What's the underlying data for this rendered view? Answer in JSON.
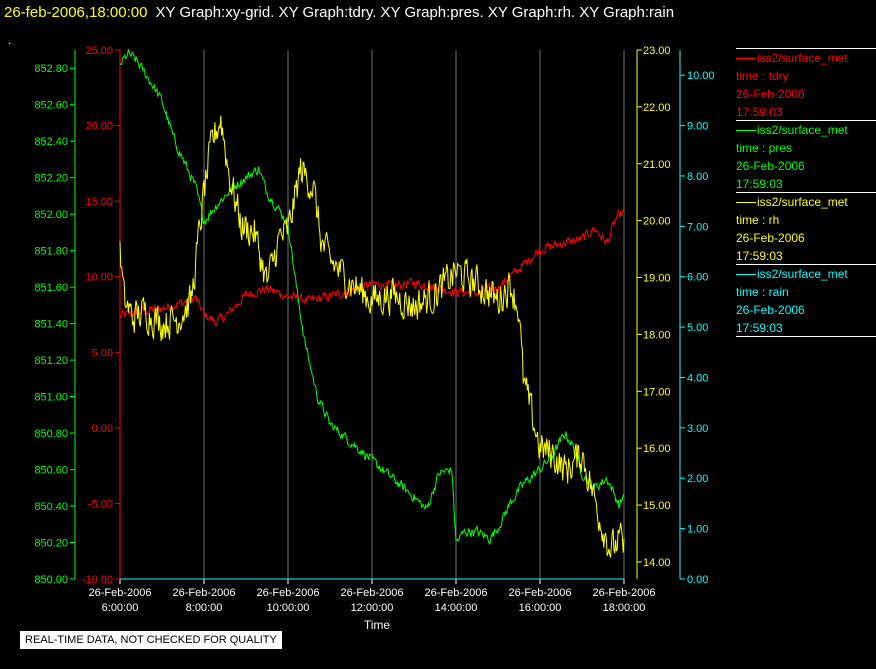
{
  "header": {
    "time": "26-feb-2006,18:00:00",
    "graphs": "XY Graph:xy-grid.  XY Graph:tdry.  XY Graph:pres.  XY Graph:rh.  XY Graph:rain",
    "dot": "."
  },
  "footer_note": "REAL-TIME DATA, NOT CHECKED FOR QUALITY",
  "legend": [
    {
      "name": "iss2/surface_met",
      "var": "time : tdry",
      "date": "26-Feb-2006",
      "time": "17:59:03",
      "color": "#ff0000"
    },
    {
      "name": "iss2/surface_met",
      "var": "time : pres",
      "date": "26-Feb-2006",
      "time": "17:59:03",
      "color": "#00ff00"
    },
    {
      "name": "iss2/surface_met",
      "var": "time : rh",
      "date": "26-Feb-2006",
      "time": "17:59:03",
      "color": "#ffff00"
    },
    {
      "name": "iss2/surface_met",
      "var": "time : rain",
      "date": "26-Feb-2006",
      "time": "17:59:03",
      "color": "#00ffff"
    }
  ],
  "chart_data": {
    "type": "line",
    "xlabel": "Time",
    "x_range": [
      "2006-02-26 06:00:00",
      "2006-02-26 18:00:00"
    ],
    "x_ticks": [
      {
        "date": "26-Feb-2006",
        "time": "6:00:00",
        "hour": 6
      },
      {
        "date": "26-Feb-2006",
        "time": "8:00:00",
        "hour": 8
      },
      {
        "date": "26-Feb-2006",
        "time": "10:00:00",
        "hour": 10
      },
      {
        "date": "26-Feb-2006",
        "time": "12:00:00",
        "hour": 12
      },
      {
        "date": "26-Feb-2006",
        "time": "14:00:00",
        "hour": 14
      },
      {
        "date": "26-Feb-2006",
        "time": "16:00:00",
        "hour": 16
      },
      {
        "date": "26-Feb-2006",
        "time": "18:00:00",
        "hour": 18
      }
    ],
    "grid": "vertical",
    "axes": {
      "pres": {
        "side": "left-outer",
        "color": "#00ff00",
        "range": [
          850.0,
          852.9
        ],
        "ticks": [
          "850.00",
          "850.20",
          "850.40",
          "850.60",
          "850.80",
          "851.00",
          "851.20",
          "851.40",
          "851.60",
          "851.80",
          "852.00",
          "852.20",
          "852.40",
          "852.60",
          "852.80"
        ]
      },
      "tdry": {
        "side": "left-inner",
        "color": "#ff0000",
        "range": [
          -10.0,
          25.0
        ],
        "ticks": [
          "-10.00",
          "-5.00",
          "0.00",
          "5.00",
          "10.00",
          "15.00",
          "20.00",
          "25.00"
        ]
      },
      "rh": {
        "side": "right-inner",
        "color": "#ffff00",
        "range": [
          13.7,
          23.0
        ],
        "ticks": [
          "14.00",
          "15.00",
          "16.00",
          "17.00",
          "18.00",
          "19.00",
          "20.00",
          "21.00",
          "22.00",
          "23.00"
        ]
      },
      "rain": {
        "side": "right-outer",
        "color": "#00ffff",
        "range": [
          0.0,
          10.5
        ],
        "ticks": [
          "0.00",
          "1.00",
          "2.00",
          "3.00",
          "4.00",
          "5.00",
          "6.00",
          "7.00",
          "8.00",
          "9.00",
          "10.00"
        ]
      }
    },
    "series": [
      {
        "key": "tdry",
        "axis": "tdry",
        "color": "#ff0000",
        "noise": 0.3,
        "points": [
          [
            6.0,
            7.4
          ],
          [
            6.5,
            7.7
          ],
          [
            7.0,
            7.9
          ],
          [
            7.5,
            8.3
          ],
          [
            7.8,
            8.6
          ],
          [
            8.0,
            7.5
          ],
          [
            8.3,
            7.0
          ],
          [
            8.6,
            7.6
          ],
          [
            9.0,
            8.8
          ],
          [
            9.5,
            9.2
          ],
          [
            10.0,
            8.7
          ],
          [
            10.5,
            8.4
          ],
          [
            11.0,
            8.7
          ],
          [
            11.5,
            9.1
          ],
          [
            12.0,
            9.5
          ],
          [
            12.5,
            9.4
          ],
          [
            13.0,
            9.6
          ],
          [
            13.5,
            9.3
          ],
          [
            14.0,
            9.0
          ],
          [
            14.5,
            8.9
          ],
          [
            15.0,
            9.3
          ],
          [
            15.5,
            10.5
          ],
          [
            16.0,
            11.8
          ],
          [
            16.5,
            12.2
          ],
          [
            17.0,
            12.5
          ],
          [
            17.3,
            13.2
          ],
          [
            17.6,
            12.2
          ],
          [
            17.8,
            13.8
          ],
          [
            18.0,
            14.3
          ]
        ]
      },
      {
        "key": "pres",
        "axis": "pres",
        "color": "#00ff00",
        "noise": 0.025,
        "points": [
          [
            6.0,
            852.82
          ],
          [
            6.2,
            852.88
          ],
          [
            6.4,
            852.84
          ],
          [
            6.8,
            852.7
          ],
          [
            7.0,
            852.62
          ],
          [
            7.3,
            852.4
          ],
          [
            7.6,
            852.25
          ],
          [
            7.8,
            852.15
          ],
          [
            8.0,
            851.96
          ],
          [
            8.3,
            852.05
          ],
          [
            8.7,
            852.15
          ],
          [
            9.0,
            852.2
          ],
          [
            9.3,
            852.25
          ],
          [
            9.5,
            852.12
          ],
          [
            10.0,
            851.95
          ],
          [
            10.2,
            851.6
          ],
          [
            10.4,
            851.3
          ],
          [
            10.7,
            851.0
          ],
          [
            11.0,
            850.85
          ],
          [
            11.5,
            850.75
          ],
          [
            12.0,
            850.65
          ],
          [
            12.5,
            850.55
          ],
          [
            13.0,
            850.45
          ],
          [
            13.3,
            850.38
          ],
          [
            13.6,
            850.58
          ],
          [
            13.9,
            850.6
          ],
          [
            14.0,
            850.2
          ],
          [
            14.2,
            850.26
          ],
          [
            14.5,
            850.26
          ],
          [
            14.8,
            850.22
          ],
          [
            15.0,
            850.28
          ],
          [
            15.3,
            850.42
          ],
          [
            15.6,
            850.52
          ],
          [
            16.0,
            850.6
          ],
          [
            16.3,
            850.68
          ],
          [
            16.6,
            850.8
          ],
          [
            16.8,
            850.72
          ],
          [
            17.0,
            850.58
          ],
          [
            17.3,
            850.5
          ],
          [
            17.6,
            850.55
          ],
          [
            17.9,
            850.4
          ],
          [
            18.0,
            850.47
          ]
        ]
      },
      {
        "key": "rh",
        "axis": "rh",
        "color": "#ffff00",
        "noise": 0.28,
        "points": [
          [
            6.0,
            19.4
          ],
          [
            6.1,
            18.6
          ],
          [
            6.3,
            18.3
          ],
          [
            6.6,
            18.4
          ],
          [
            7.0,
            18.2
          ],
          [
            7.4,
            18.3
          ],
          [
            7.7,
            18.6
          ],
          [
            8.0,
            20.5
          ],
          [
            8.2,
            21.4
          ],
          [
            8.4,
            21.8
          ],
          [
            8.6,
            20.8
          ],
          [
            8.9,
            19.9
          ],
          [
            9.2,
            19.8
          ],
          [
            9.5,
            18.9
          ],
          [
            9.8,
            19.7
          ],
          [
            10.0,
            19.8
          ],
          [
            10.3,
            20.9
          ],
          [
            10.6,
            20.6
          ],
          [
            10.8,
            19.6
          ],
          [
            11.0,
            19.3
          ],
          [
            11.5,
            18.9
          ],
          [
            12.0,
            18.6
          ],
          [
            12.5,
            18.7
          ],
          [
            13.0,
            18.5
          ],
          [
            13.5,
            18.7
          ],
          [
            14.0,
            19.1
          ],
          [
            14.5,
            18.9
          ],
          [
            15.0,
            18.6
          ],
          [
            15.3,
            18.9
          ],
          [
            15.5,
            18.4
          ],
          [
            15.6,
            17.2
          ],
          [
            15.8,
            16.6
          ],
          [
            16.0,
            16.0
          ],
          [
            16.3,
            15.9
          ],
          [
            16.6,
            15.6
          ],
          [
            17.0,
            15.9
          ],
          [
            17.3,
            15.1
          ],
          [
            17.5,
            14.6
          ],
          [
            17.7,
            14.2
          ],
          [
            17.9,
            14.4
          ],
          [
            18.0,
            14.2
          ]
        ]
      },
      {
        "key": "rain",
        "axis": "rain",
        "color": "#00ffff",
        "noise": 0,
        "points": [
          [
            6.0,
            0.0
          ],
          [
            18.0,
            0.0
          ]
        ]
      }
    ]
  }
}
